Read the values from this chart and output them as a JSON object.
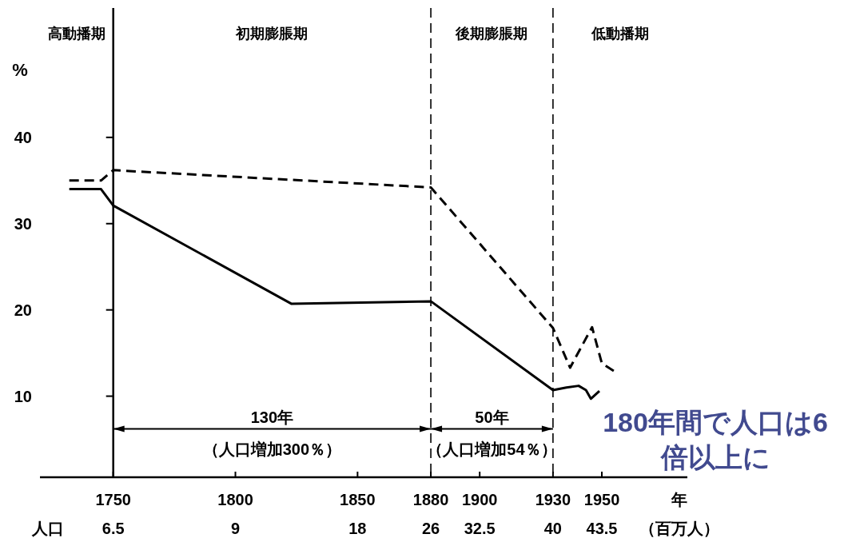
{
  "chart_data": {
    "type": "line",
    "ylabel": "%",
    "xlabel": "年",
    "xlim": [
      1720,
      1985
    ],
    "ylim": [
      0.6,
      55
    ],
    "xticks": [
      1750,
      1800,
      1850,
      1880,
      1900,
      1930,
      1950
    ],
    "yticks": [
      10,
      20,
      30,
      40
    ],
    "marker": "none",
    "series": [
      {
        "color": "#000000",
        "line_style": "dashed",
        "x": [
          1732,
          1745,
          1750,
          1880,
          1930,
          1937,
          1946,
          1950,
          1955
        ],
        "values": [
          35.0,
          35.0,
          36.2,
          34.2,
          17.9,
          13.3,
          18.0,
          13.8,
          12.9
        ]
      },
      {
        "color": "#000000",
        "line_style": "solid",
        "x": [
          1732,
          1745,
          1750,
          1823,
          1880,
          1930,
          1935.5,
          1940.5,
          1943.5,
          1945.5,
          1949
        ],
        "values": [
          34.0,
          34.0,
          32.1,
          20.7,
          21.0,
          10.7,
          11.0,
          11.2,
          10.7,
          9.7,
          10.6
        ]
      }
    ],
    "ref_lines": [
      {
        "axis": "x",
        "value": 1750,
        "line_style": "solid"
      },
      {
        "axis": "x",
        "value": 1880,
        "line_style": "dashed"
      },
      {
        "axis": "x",
        "value": 1930,
        "line_style": "dashed"
      }
    ],
    "annotations": [
      "高動播期",
      "初期膨脹期",
      "後期膨脹期",
      "低動播期",
      "130年",
      "（人口増加300％）",
      "50年",
      "（人口増加54％）",
      "人口",
      "6.5",
      "9",
      "18",
      "26",
      "32.5",
      "40",
      "43.5",
      "（百万人）",
      "180年間で人口は6倍以上に"
    ]
  }
}
